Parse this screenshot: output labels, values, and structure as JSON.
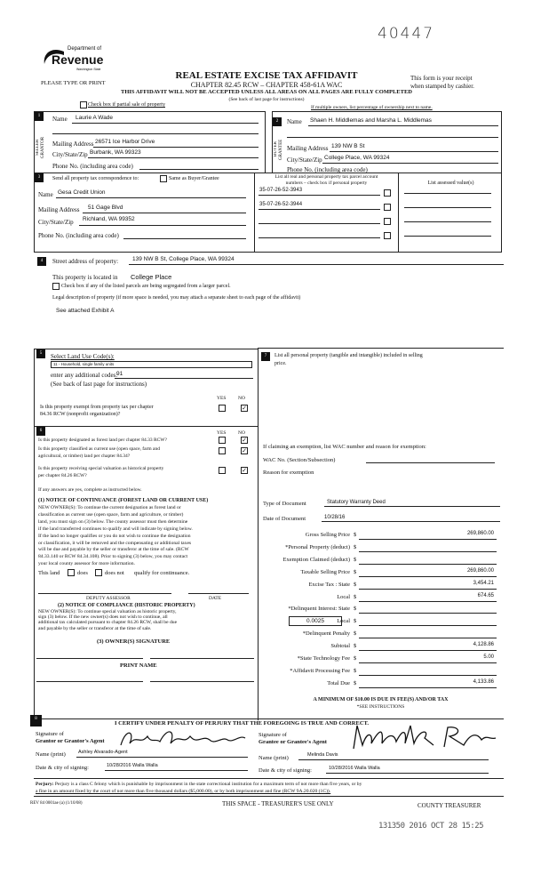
{
  "handwritten_number": "40447",
  "logo": {
    "line1": "Department of",
    "line2": "Revenue",
    "line3": "Washington State"
  },
  "header": {
    "please": "PLEASE TYPE OR PRINT",
    "title": "REAL ESTATE EXCISE TAX AFFIDAVIT",
    "chapter": "CHAPTER 82.45 RCW – CHAPTER 458-61A WAC",
    "warning": "THIS AFFIDAVIT WILL NOT BE ACCEPTED UNLESS ALL AREAS ON ALL PAGES ARE FULLY COMPLETED",
    "see_back": "(See back of last page for instructions)",
    "receipt1": "This form is your receipt",
    "receipt2": "when stamped by cashier.",
    "partial_sale": "Check box if partial sale of property",
    "multiple_owners": "If multiple owners, list percentage of ownership next to name."
  },
  "s1": {
    "num": "1",
    "side": "SELLER GRANTOR",
    "name_label": "Name",
    "name": "Laurie A Wade",
    "mail_label": "Mailing Address",
    "mail": "26571 Ice Harbor Drive",
    "city_label": "City/State/Zip",
    "city": "Burbank, WA 99323",
    "phone_label": "Phone No. (including area code)"
  },
  "s2": {
    "num": "2",
    "side": "BUYER GRANTEE",
    "name_label": "Name",
    "name": "Shaen H. Middlemas and Marsha L. Middlemas",
    "mail_label": "Mailing Address",
    "mail": "139 NW B St",
    "city_label": "City/State/Zip",
    "city": "College Place, WA 99324",
    "phone_label": "Phone No. (including area code)"
  },
  "s3": {
    "num": "3",
    "send": "Send all property tax correspondence to:",
    "same": "Same as Buyer/Grantee",
    "name_label": "Name",
    "name": "Gesa Credit Union",
    "mail_label": "Mailing Address",
    "mail": "51 Gage Blvd",
    "city_label": "City/State/Zip",
    "city": "Richland, WA 99352",
    "phone_label": "Phone No. (including area code)",
    "parcel_head1": "List all real and personal property tax parcel account",
    "parcel_head2": "numbers – check box if personal property",
    "parcels": [
      "35-07-26-52-3943",
      "35-07-26-52-3944",
      "",
      ""
    ],
    "assessed_head": "List assessed value(s)"
  },
  "s4": {
    "num": "4",
    "street_label": "Street address of property:",
    "street": "139 NW B St, College Place, WA 99324",
    "located_label": "This property is located in",
    "located": "College Place",
    "segregated": "Check box if any of the listed parcels are being segregated from a larger parcel.",
    "legal": "Legal description of property (if more space is needed, you may attach a separate sheet to each page of the affidavit)",
    "legal_value": "See attached Exhibit A"
  },
  "s5": {
    "num": "5",
    "label": "Select Land Use Code(s):",
    "code": "11 - Household, single family units",
    "additional_label": "enter any additional codes:",
    "additional": "91",
    "see_back": "(See back of last page for instructions)",
    "yes": "YES",
    "no": "NO",
    "q1a": "Is this property exempt from property tax per chapter",
    "q1b": "84.36 RCW (nonprofit organization)?",
    "check": "✓"
  },
  "s6": {
    "num": "6",
    "q1": "Is this property designated as forest land per chapter 84.33 RCW?",
    "q2a": "Is this property classified as current use (open space, farm and",
    "q2b": "agricultural, or timber) land per chapter 84.34?",
    "q3a": "Is this property receiving special valuation as historical property",
    "q3b": "per chapter 84.26 RCW?",
    "if_yes": "If any answers are yes, complete as instructed below.",
    "n1_title": "(1) NOTICE OF CONTINUANCE  (FOREST LAND OR CURRENT USE)",
    "n1_lines": [
      "NEW OWNER(S): To continue the current designation as forest land or",
      "classification as current use (open space, farm and agriculture, or timber)",
      "land, you must sign on (3) below. The county assessor must then determine",
      "if the land transferred continues to qualify and will indicate by signing below.",
      "If the land no longer qualifies or you do not wish to continue the designation",
      "or classification, it will be removed and the compensating or additional taxes",
      "will be due and payable by the seller or transferor at the time of sale. (RCW",
      "84.33.140 or RCW 84.34.108). Prior to signing (3) below, you may contact",
      "your local county assessor for more information."
    ],
    "this_land": "This land",
    "does": "does",
    "does_not": "does not",
    "qualify": "qualify for continuance.",
    "deputy": "DEPUTY ASSESSOR",
    "date": "DATE",
    "n2_title": "(2) NOTICE OF COMPLIANCE (HISTORIC PROPERTY)",
    "n2_lines": [
      "NEW OWNER(S): To continue special valuation as historic property,",
      "sign (3) below. If the new owner(s) does not wish to continue, all",
      "additional tax calculated pursuant to chapter 84.26 RCW, shall be due",
      "and payable by the seller or transferor at the time of sale."
    ],
    "owner_sig": "(3)  OWNER(S) SIGNATURE",
    "print_name": "PRINT NAME"
  },
  "s7": {
    "num": "7",
    "list": "List all  personal property (tangible and intangible) included in selling",
    "list2": "price.",
    "exemption": "If claiming an exemption, list WAC number and reason for exemption:",
    "wac": "WAC No. (Section/Subsection)",
    "reason": "Reason for exemption",
    "type_label": "Type of Document",
    "type": "Statutory Warranty Deed",
    "date_label": "Date of Document",
    "date": "10/28/16",
    "local_rate": "0.0025",
    "rows": [
      {
        "label": "Gross Selling Price",
        "value": "269,860.00"
      },
      {
        "label": "*Personal Property (deduct)",
        "value": ""
      },
      {
        "label": "Exemption Claimed (deduct)",
        "value": ""
      },
      {
        "label": "Taxable Selling Price",
        "value": "269,860.00"
      },
      {
        "label": "Excise Tax : State",
        "value": "3,454.21"
      },
      {
        "label": "Local",
        "value": "674.65"
      },
      {
        "label": "*Delinquent Interest: State",
        "value": ""
      },
      {
        "label": "Local",
        "value": ""
      },
      {
        "label": "*Delinquent Penalty",
        "value": ""
      },
      {
        "label": "Subtotal",
        "value": "4,128.86"
      },
      {
        "label": "*State Technology Fee",
        "value": "5.00"
      },
      {
        "label": "*Affidavit Processing Fee",
        "value": ""
      },
      {
        "label": "Total Due",
        "value": "4,133.86"
      }
    ],
    "dollar": "$",
    "minimum": "A MINIMUM OF $10.00 IS DUE IN FEE(S) AND/OR TAX",
    "see_instr": "*SEE INSTRUCTIONS"
  },
  "s8": {
    "num": "8",
    "certify": "I CERTIFY UNDER PENALTY OF PERJURY THAT THE FOREGOING IS TRUE AND CORRECT.",
    "sig_of": "Signature of",
    "grantor_agent": "Grantor or Grantor's Agent",
    "grantee_agent": "Grantee or Grantee's Agent",
    "name_label": "Name (print)",
    "grantor_name": "Ashley Alvarado-Agent",
    "grantee_name": "Melinda Davis",
    "date_label": "Date & city of signing:",
    "grantor_date": "10/28/2016  Walla Walla",
    "grantee_date": "10/28/2016  Walla Walla"
  },
  "footer": {
    "perjury_bold": "Perjury:",
    "perjury1": "Perjury is a class C felony which is punishable by imprisonment in the state correctional institution for a maximum term of not more than five years, or by",
    "perjury2": "a fine in an amount fixed by the court of not more than five thousand dollars ($5,000.00), or by both imprisonment and fine (RCW 9A.20.020 (1C)).",
    "form_no": "REV 84 0001ae (a) (1/10/08)",
    "treasurer_space": "THIS SPACE - TREASURER'S USE ONLY",
    "county_treasurer": "COUNTY TREASURER",
    "stamp": "131350 2016 OCT 28 15:25"
  }
}
